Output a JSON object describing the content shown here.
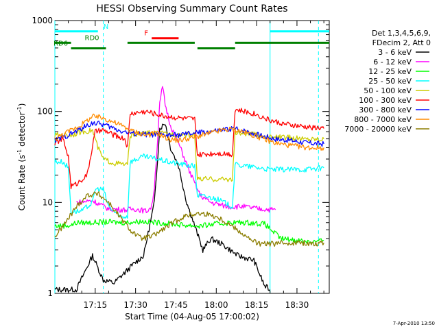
{
  "chart_data": {
    "type": "line",
    "title": "HESSI Observing Summary Count Rates",
    "xlabel": "Start Time (04-Aug-05 17:00:02)",
    "ylabel_main": "Count Rate (s",
    "ylabel_sup1": "-1",
    "ylabel_mid": " detector",
    "ylabel_sup2": "-1",
    "ylabel_end": ")",
    "y_scale": "log",
    "ylim": [
      1,
      1000
    ],
    "xlim_minutes": [
      0,
      102
    ],
    "x_ticks": [
      {
        "t": 15,
        "label": "17:15"
      },
      {
        "t": 30,
        "label": "17:30"
      },
      {
        "t": 45,
        "label": "17:45"
      },
      {
        "t": 60,
        "label": "18:00"
      },
      {
        "t": 75,
        "label": "18:15"
      },
      {
        "t": 90,
        "label": "18:30"
      }
    ],
    "y_ticks": [
      {
        "v": 1,
        "label": "1"
      },
      {
        "v": 10,
        "label": "10"
      },
      {
        "v": 100,
        "label": "100"
      },
      {
        "v": 1000,
        "label": "1000"
      }
    ],
    "legend_header": [
      "Det 1,3,4,5,6,9,",
      "FDecim 2, Att 0"
    ],
    "series": [
      {
        "name": "3 - 6 keV",
        "color": "#000000",
        "points": [
          [
            0,
            1.1
          ],
          [
            8,
            1.1
          ],
          [
            14,
            2.6
          ],
          [
            18,
            1.4
          ],
          [
            22,
            1.3
          ],
          [
            30,
            2.2
          ],
          [
            33,
            2.6
          ],
          [
            37,
            10
          ],
          [
            39,
            65
          ],
          [
            41,
            75
          ],
          [
            43,
            40
          ],
          [
            46,
            25
          ],
          [
            49,
            10
          ],
          [
            52,
            5.5
          ],
          [
            55,
            3
          ],
          [
            58,
            4
          ],
          [
            62,
            3.5
          ],
          [
            68,
            2.6
          ],
          [
            74,
            2.3
          ],
          [
            78,
            1.2
          ],
          [
            80,
            1.1
          ]
        ]
      },
      {
        "name": "6 - 12 keV",
        "color": "#ff00ff",
        "points": [
          [
            8,
            10
          ],
          [
            14,
            10.5
          ],
          [
            20,
            8.5
          ],
          [
            26,
            8.3
          ],
          [
            30,
            8.5
          ],
          [
            34,
            8
          ],
          [
            36,
            9
          ],
          [
            37,
            15
          ],
          [
            38,
            40
          ],
          [
            39,
            120
          ],
          [
            40,
            190
          ],
          [
            41,
            120
          ],
          [
            43,
            70
          ],
          [
            46,
            45
          ],
          [
            50,
            22
          ],
          [
            54,
            12
          ],
          [
            58,
            10
          ],
          [
            64,
            9
          ],
          [
            70,
            9
          ],
          [
            76,
            8.5
          ],
          [
            82,
            8.3
          ]
        ]
      },
      {
        "name": "12 - 25 keV",
        "color": "#00ff00",
        "points": [
          [
            0,
            5.5
          ],
          [
            6,
            5.6
          ],
          [
            8,
            6
          ],
          [
            14,
            6
          ],
          [
            20,
            6.1
          ],
          [
            26,
            6
          ],
          [
            32,
            6.2
          ],
          [
            38,
            6
          ],
          [
            44,
            5.8
          ],
          [
            46,
            5.7
          ],
          [
            54,
            5.5
          ],
          [
            60,
            5.8
          ],
          [
            66,
            6
          ],
          [
            72,
            6
          ],
          [
            78,
            5.8
          ],
          [
            84,
            4
          ],
          [
            92,
            3.8
          ],
          [
            96,
            3.7
          ],
          [
            100,
            3.8
          ]
        ]
      },
      {
        "name": "25 - 50 keV",
        "color": "#00ffff",
        "points": [
          [
            0,
            28
          ],
          [
            3,
            28
          ],
          [
            5,
            24
          ],
          [
            6,
            8
          ],
          [
            10,
            8
          ],
          [
            14,
            10
          ],
          [
            15,
            14
          ],
          [
            18,
            14
          ],
          [
            20,
            9
          ],
          [
            24,
            7
          ],
          [
            27,
            7
          ],
          [
            28,
            28
          ],
          [
            33,
            32
          ],
          [
            38,
            30
          ],
          [
            42,
            28
          ],
          [
            48,
            26
          ],
          [
            52,
            25
          ],
          [
            53,
            12
          ],
          [
            60,
            11
          ],
          [
            66,
            9
          ],
          [
            67,
            26
          ],
          [
            76,
            24
          ],
          [
            80,
            23
          ],
          [
            84,
            23
          ],
          [
            92,
            23
          ],
          [
            100,
            24
          ]
        ]
      },
      {
        "name": "50 - 100 keV",
        "color": "#cccc00",
        "points": [
          [
            0,
            55
          ],
          [
            6,
            55
          ],
          [
            10,
            60
          ],
          [
            14,
            62
          ],
          [
            16,
            40
          ],
          [
            18,
            30
          ],
          [
            22,
            27
          ],
          [
            27,
            26
          ],
          [
            28,
            55
          ],
          [
            34,
            58
          ],
          [
            40,
            57
          ],
          [
            46,
            56
          ],
          [
            52,
            55
          ],
          [
            53,
            18
          ],
          [
            60,
            18
          ],
          [
            66,
            18
          ],
          [
            67,
            58
          ],
          [
            74,
            56
          ],
          [
            80,
            52
          ],
          [
            86,
            52
          ],
          [
            92,
            50
          ],
          [
            100,
            50
          ]
        ]
      },
      {
        "name": "100 - 300 keV",
        "color": "#ff0000",
        "points": [
          [
            0,
            45
          ],
          [
            3,
            50
          ],
          [
            5,
            32
          ],
          [
            6,
            15
          ],
          [
            8,
            16
          ],
          [
            12,
            20
          ],
          [
            15,
            60
          ],
          [
            18,
            62
          ],
          [
            22,
            55
          ],
          [
            26,
            50
          ],
          [
            27,
            40
          ],
          [
            28,
            95
          ],
          [
            34,
            100
          ],
          [
            40,
            90
          ],
          [
            46,
            85
          ],
          [
            52,
            82
          ],
          [
            53,
            33
          ],
          [
            60,
            35
          ],
          [
            66,
            34
          ],
          [
            67,
            105
          ],
          [
            74,
            95
          ],
          [
            80,
            80
          ],
          [
            86,
            72
          ],
          [
            92,
            68
          ],
          [
            100,
            65
          ]
        ]
      },
      {
        "name": "300 - 800 keV",
        "color": "#0000ff",
        "points": [
          [
            0,
            48
          ],
          [
            5,
            55
          ],
          [
            10,
            65
          ],
          [
            14,
            75
          ],
          [
            18,
            72
          ],
          [
            24,
            62
          ],
          [
            28,
            58
          ],
          [
            34,
            56
          ],
          [
            40,
            55
          ],
          [
            46,
            55
          ],
          [
            52,
            58
          ],
          [
            58,
            60
          ],
          [
            62,
            62
          ],
          [
            66,
            65
          ],
          [
            70,
            62
          ],
          [
            76,
            55
          ],
          [
            82,
            50
          ],
          [
            88,
            48
          ],
          [
            94,
            45
          ],
          [
            100,
            44
          ]
        ]
      },
      {
        "name": "800 - 7000 keV",
        "color": "#ff8c00",
        "points": [
          [
            0,
            50
          ],
          [
            5,
            60
          ],
          [
            10,
            72
          ],
          [
            14,
            88
          ],
          [
            18,
            85
          ],
          [
            24,
            72
          ],
          [
            28,
            62
          ],
          [
            34,
            55
          ],
          [
            38,
            58
          ],
          [
            42,
            50
          ],
          [
            46,
            48
          ],
          [
            52,
            52
          ],
          [
            58,
            58
          ],
          [
            62,
            62
          ],
          [
            66,
            64
          ],
          [
            70,
            60
          ],
          [
            76,
            52
          ],
          [
            82,
            45
          ],
          [
            88,
            42
          ],
          [
            94,
            40
          ],
          [
            100,
            40
          ]
        ]
      },
      {
        "name": "7000 - 20000 keV",
        "color": "#8b7d00",
        "points": [
          [
            0,
            4.2
          ],
          [
            4,
            6
          ],
          [
            8,
            9
          ],
          [
            12,
            12
          ],
          [
            16,
            12.5
          ],
          [
            20,
            10
          ],
          [
            24,
            7
          ],
          [
            28,
            5
          ],
          [
            32,
            4
          ],
          [
            36,
            4.2
          ],
          [
            40,
            5
          ],
          [
            44,
            6
          ],
          [
            48,
            7
          ],
          [
            52,
            7.5
          ],
          [
            56,
            7.5
          ],
          [
            60,
            7
          ],
          [
            64,
            6
          ],
          [
            68,
            5
          ],
          [
            72,
            4
          ],
          [
            76,
            3.5
          ],
          [
            80,
            3.5
          ],
          [
            86,
            3.6
          ],
          [
            92,
            3.6
          ],
          [
            96,
            3.5
          ],
          [
            100,
            3.6
          ]
        ]
      }
    ],
    "flag_labels": [
      {
        "label": "N",
        "color": "#00ffff",
        "y": 760,
        "segments": [
          [
            0,
            16
          ],
          [
            80,
            102
          ]
        ]
      },
      {
        "label": "F",
        "color": "#ff0000",
        "y": 640,
        "segments": [
          [
            36,
            46
          ]
        ]
      },
      {
        "label": "RD0",
        "color": "#008000",
        "y": 570,
        "segments": [
          [
            0,
            6
          ],
          [
            27,
            52
          ],
          [
            67,
            102
          ]
        ]
      },
      {
        "label": "RD6",
        "color": "#008000",
        "y": 495,
        "segments": [
          [
            6,
            19
          ],
          [
            53,
            67
          ]
        ]
      }
    ],
    "vlines": [
      {
        "t": 0,
        "style": "solid",
        "color": "#00ffff"
      },
      {
        "t": 18,
        "style": "dashed",
        "color": "#00ffff"
      },
      {
        "t": 80,
        "style": "solid",
        "color": "#00ffff"
      },
      {
        "t": 98,
        "style": "dashed",
        "color": "#00ffff"
      }
    ],
    "timestamp": "7-Apr-2010 13:50"
  }
}
